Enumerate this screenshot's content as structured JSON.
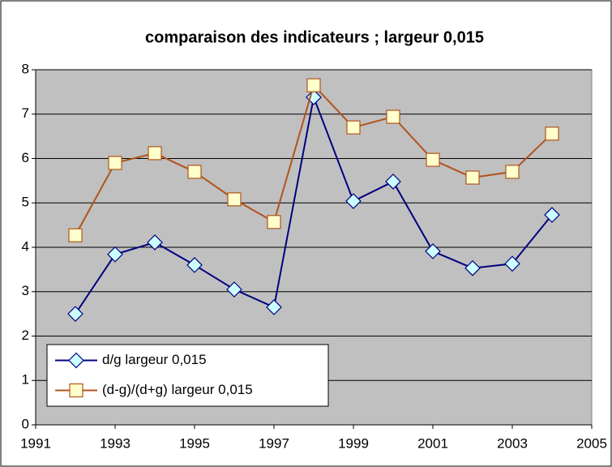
{
  "chart_data": {
    "type": "line",
    "title": "comparaison des indicateurs ; largeur 0,015",
    "x": [
      1992,
      1993,
      1994,
      1995,
      1996,
      1997,
      1998,
      1999,
      2000,
      2001,
      2002,
      2003,
      2004
    ],
    "series": [
      {
        "name": "d/g largeur 0,015",
        "color": "#000080",
        "marker": "diamond",
        "marker_fill": "#ccffff",
        "values": [
          2.5,
          3.84,
          4.11,
          3.6,
          3.05,
          2.65,
          7.38,
          5.04,
          5.48,
          3.91,
          3.53,
          3.63,
          4.73
        ]
      },
      {
        "name": "(d-g)/(d+g) largeur 0,015",
        "color": "#b0541c",
        "marker": "square",
        "marker_fill": "#ffffcc",
        "values": [
          4.27,
          5.9,
          6.12,
          5.7,
          5.08,
          4.57,
          7.65,
          6.7,
          6.94,
          5.97,
          5.57,
          5.7,
          6.56
        ]
      }
    ],
    "xlim": [
      1991,
      2005
    ],
    "xticks": [
      1991,
      1993,
      1995,
      1997,
      1999,
      2001,
      2003,
      2005
    ],
    "ylim": [
      0,
      8
    ],
    "yticks": [
      0,
      1,
      2,
      3,
      4,
      5,
      6,
      7,
      8
    ],
    "grid": true,
    "plot_background": "#c0c0c0",
    "legend": "lower left"
  }
}
